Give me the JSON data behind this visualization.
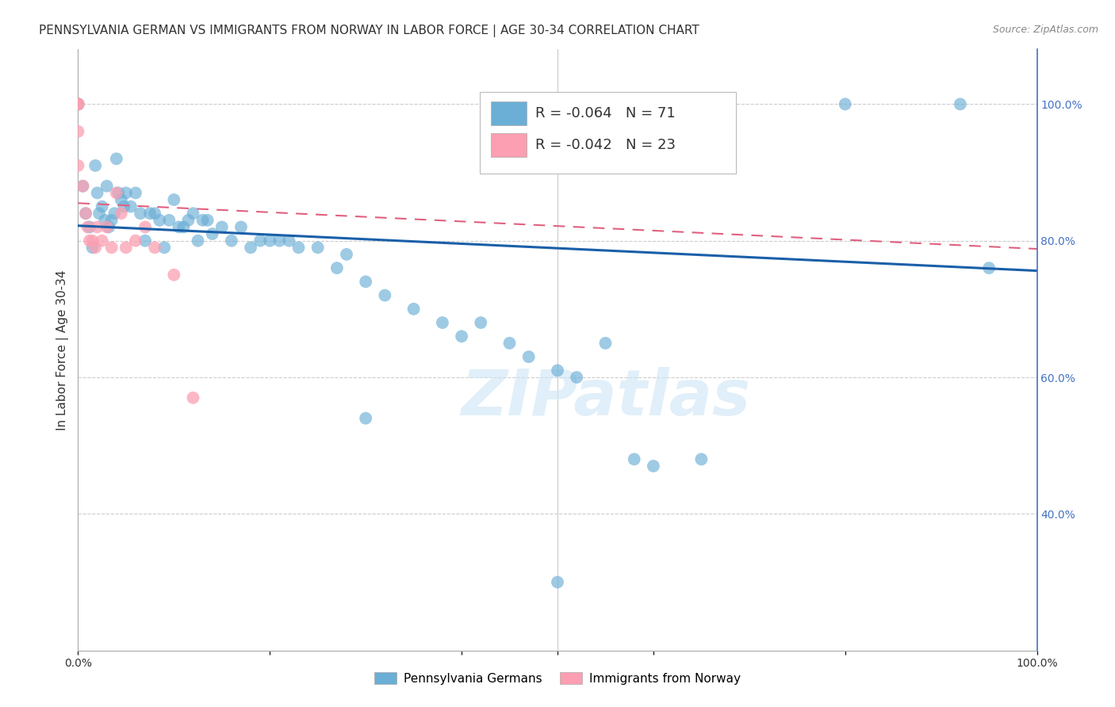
{
  "title": "PENNSYLVANIA GERMAN VS IMMIGRANTS FROM NORWAY IN LABOR FORCE | AGE 30-34 CORRELATION CHART",
  "source": "Source: ZipAtlas.com",
  "ylabel": "In Labor Force | Age 30-34",
  "xlim": [
    0.0,
    1.0
  ],
  "ylim": [
    0.2,
    1.08
  ],
  "y_ticks_right": [
    1.0,
    0.8,
    0.6,
    0.4
  ],
  "y_tick_labels_right": [
    "100.0%",
    "80.0%",
    "60.0%",
    "40.0%"
  ],
  "x_ticks": [
    0.0,
    0.2,
    0.4,
    0.5,
    0.6,
    0.8,
    1.0
  ],
  "x_tick_labels": [
    "0.0%",
    "",
    "",
    "",
    "",
    "",
    "100.0%"
  ],
  "legend_blue_r": "-0.064",
  "legend_blue_n": "71",
  "legend_pink_r": "-0.042",
  "legend_pink_n": "23",
  "blue_color": "#6baed6",
  "pink_color": "#fc9fb2",
  "blue_line_color": "#1a5fa8",
  "pink_line_color": "#e06080",
  "watermark": "ZIPatlas",
  "blue_scatter_x": [
    0.0,
    0.0,
    0.0,
    0.0,
    0.005,
    0.008,
    0.012,
    0.015,
    0.018,
    0.02,
    0.022,
    0.025,
    0.028,
    0.03,
    0.032,
    0.035,
    0.038,
    0.04,
    0.042,
    0.045,
    0.048,
    0.05,
    0.055,
    0.06,
    0.065,
    0.07,
    0.075,
    0.08,
    0.085,
    0.09,
    0.095,
    0.1,
    0.105,
    0.11,
    0.115,
    0.12,
    0.125,
    0.13,
    0.135,
    0.14,
    0.15,
    0.16,
    0.17,
    0.18,
    0.19,
    0.2,
    0.21,
    0.22,
    0.23,
    0.25,
    0.27,
    0.28,
    0.3,
    0.32,
    0.35,
    0.38,
    0.4,
    0.42,
    0.45,
    0.47,
    0.5,
    0.52,
    0.55,
    0.58,
    0.6,
    0.65,
    0.8,
    0.92,
    0.95,
    0.5,
    0.3
  ],
  "blue_scatter_y": [
    1.0,
    1.0,
    1.0,
    1.0,
    0.88,
    0.84,
    0.82,
    0.79,
    0.91,
    0.87,
    0.84,
    0.85,
    0.83,
    0.88,
    0.82,
    0.83,
    0.84,
    0.92,
    0.87,
    0.86,
    0.85,
    0.87,
    0.85,
    0.87,
    0.84,
    0.8,
    0.84,
    0.84,
    0.83,
    0.79,
    0.83,
    0.86,
    0.82,
    0.82,
    0.83,
    0.84,
    0.8,
    0.83,
    0.83,
    0.81,
    0.82,
    0.8,
    0.82,
    0.79,
    0.8,
    0.8,
    0.8,
    0.8,
    0.79,
    0.79,
    0.76,
    0.78,
    0.74,
    0.72,
    0.7,
    0.68,
    0.66,
    0.68,
    0.65,
    0.63,
    0.61,
    0.6,
    0.65,
    0.48,
    0.47,
    0.48,
    1.0,
    1.0,
    0.76,
    0.3,
    0.54
  ],
  "pink_scatter_x": [
    0.0,
    0.0,
    0.0,
    0.0,
    0.0,
    0.005,
    0.008,
    0.01,
    0.012,
    0.015,
    0.018,
    0.02,
    0.025,
    0.03,
    0.035,
    0.04,
    0.045,
    0.05,
    0.06,
    0.07,
    0.08,
    0.1,
    0.12
  ],
  "pink_scatter_y": [
    1.0,
    1.0,
    1.0,
    0.96,
    0.91,
    0.88,
    0.84,
    0.82,
    0.8,
    0.8,
    0.79,
    0.82,
    0.8,
    0.82,
    0.79,
    0.87,
    0.84,
    0.79,
    0.8,
    0.82,
    0.79,
    0.75,
    0.57
  ],
  "blue_trend_y_start": 0.822,
  "blue_trend_y_end": 0.756,
  "pink_trend_y_start": 0.855,
  "pink_trend_y_end": 0.788,
  "grid_color": "#cccccc",
  "bg_color": "#ffffff",
  "title_fontsize": 11,
  "axis_label_fontsize": 11
}
